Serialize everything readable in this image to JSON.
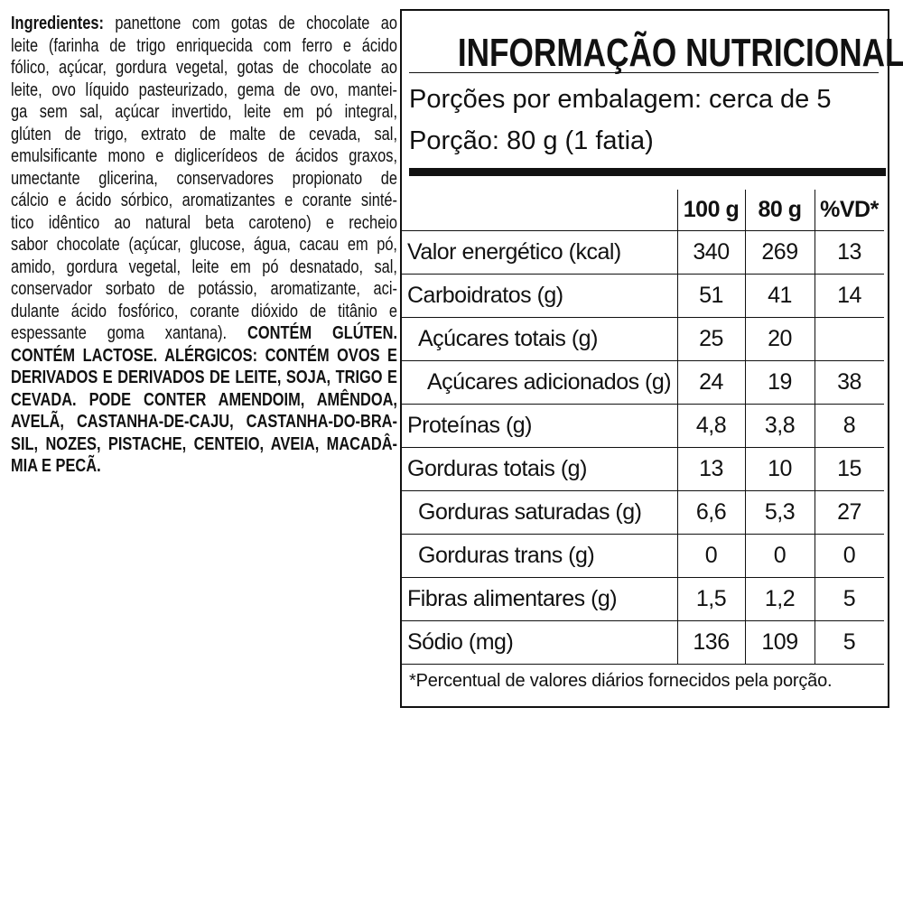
{
  "ingredients": {
    "label": "Ingredientes:",
    "lines": [
      "panettone com gotas de chocolate ao",
      "leite (farinha de trigo enriquecida com ferro e ácido",
      "fólico, açúcar, gordura vegetal, gotas de chocolate ao",
      "leite, ovo líquido pasteurizado, gema de ovo, mantei-",
      "ga sem sal, açúcar invertido, leite em pó integral,",
      "glúten de trigo, extrato de malte de cevada, sal,",
      "emulsificante mono e diglicerídeos de ácidos graxos,",
      "umectante glicerina, conservadores propionato de",
      "cálcio e ácido sórbico, aromatizantes e corante sinté-",
      "tico idêntico ao natural beta caroteno) e recheio",
      "sabor chocolate (açúcar, glucose, água, cacau em pó,",
      "amido, gordura vegetal, leite em pó desnatado, sal,",
      "conservador sorbato de potássio, aromatizante, aci-",
      "dulante ácido fosfórico, corante dióxido de titânio e",
      "espessante goma xantana)."
    ],
    "allergen_lines": [
      "CONTÉM GLÚTEN.",
      "CONTÉM LACTOSE. ALÉRGICOS: CONTÉM OVOS E",
      "DERIVADOS E DERIVADOS DE LEITE, SOJA, TRIGO E",
      "CEVADA. PODE CONTER AMENDOIM, AMÊNDOA,",
      "AVELÃ, CASTANHA-DE-CAJU, CASTANHA-DO-BRA-",
      "SIL, NOZES, PISTACHE, CENTEIO, AVEIA, MACADÂ-",
      "MIA E PECÃ."
    ]
  },
  "nutrition": {
    "title": "INFORMAÇÃO NUTRICIONAL",
    "servings_per_package": "Porções por embalagem: cerca de 5",
    "serving_size": "Porção: 80 g (1 fatia)",
    "columns": [
      "100 g",
      "80 g",
      "%VD*"
    ],
    "rows": [
      {
        "label": "Valor energético (kcal)",
        "values": [
          "340",
          "269",
          "13"
        ]
      },
      {
        "label": "Carboidratos (g)",
        "values": [
          "51",
          "41",
          "14"
        ]
      },
      {
        "label": "Açúcares totais (g)",
        "values": [
          "25",
          "20",
          null
        ]
      },
      {
        "label": "Açúcares adicionados (g)",
        "values": [
          "24",
          "19",
          "38"
        ]
      },
      {
        "label": "Proteínas (g)",
        "values": [
          "4,8",
          "3,8",
          "8"
        ]
      },
      {
        "label": "Gorduras totais (g)",
        "values": [
          "13",
          "10",
          "15"
        ]
      },
      {
        "label": "Gorduras saturadas (g)",
        "values": [
          "6,6",
          "5,3",
          "27"
        ]
      },
      {
        "label": "Gorduras trans (g)",
        "values": [
          "0",
          "0",
          "0"
        ]
      },
      {
        "label": "Fibras alimentares (g)",
        "values": [
          "1,5",
          "1,2",
          "5"
        ]
      },
      {
        "label": "Sódio (mg)",
        "values": [
          "136",
          "109",
          "5"
        ]
      }
    ],
    "footnote": "*Percentual de valores diários fornecidos pela porção."
  }
}
